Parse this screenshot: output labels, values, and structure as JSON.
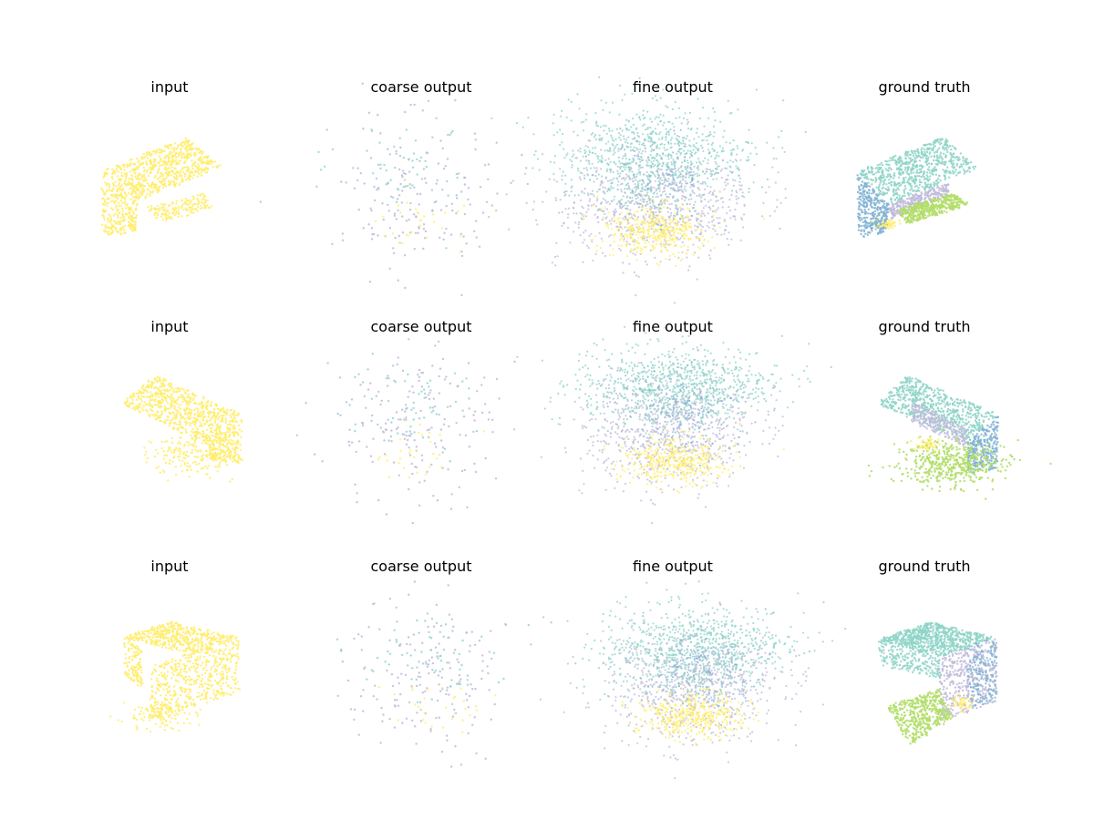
{
  "figure": {
    "columns": [
      "input",
      "coarse output",
      "fine output",
      "ground truth"
    ],
    "rows": 3,
    "panels": [
      {
        "title": "input"
      },
      {
        "title": "coarse output"
      },
      {
        "title": "fine output"
      },
      {
        "title": "ground truth"
      },
      {
        "title": "input"
      },
      {
        "title": "coarse output"
      },
      {
        "title": "fine output"
      },
      {
        "title": "ground truth"
      },
      {
        "title": "input"
      },
      {
        "title": "coarse output"
      },
      {
        "title": "fine output"
      },
      {
        "title": "ground truth"
      }
    ]
  },
  "colors": {
    "yellow": "#ffed6f",
    "teal": "#8dd3c7",
    "lavender": "#bebada",
    "blue": "#80b1d3",
    "green": "#b3de69",
    "background": "#ffffff"
  }
}
